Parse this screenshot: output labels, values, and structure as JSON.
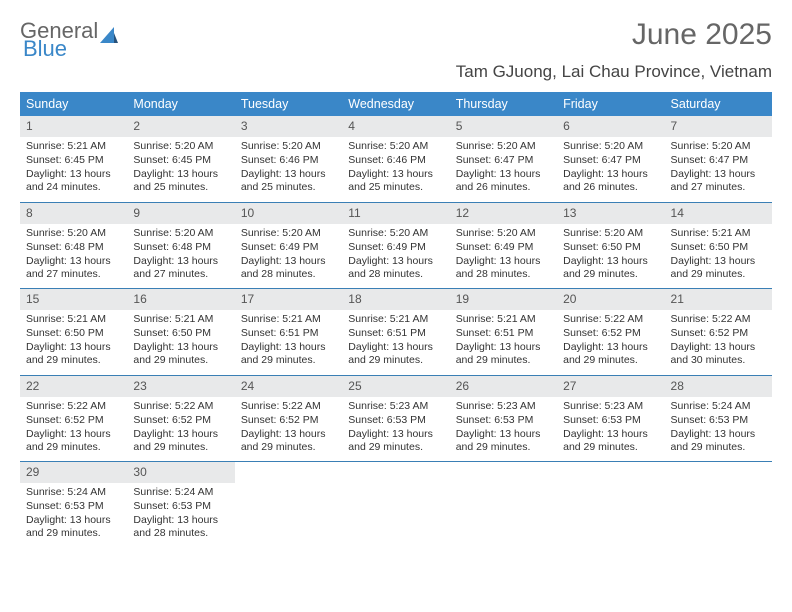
{
  "logo": {
    "text1": "General",
    "text2": "Blue"
  },
  "title": "June 2025",
  "location": "Tam GJuong, Lai Chau Province, Vietnam",
  "colors": {
    "header_bg": "#3a87c8",
    "daynum_bg": "#e8e9ea",
    "week_border": "#3a7fb5",
    "title_color": "#666666",
    "text_color": "#333333"
  },
  "dayNames": [
    "Sunday",
    "Monday",
    "Tuesday",
    "Wednesday",
    "Thursday",
    "Friday",
    "Saturday"
  ],
  "labels": {
    "sunrise": "Sunrise:",
    "sunset": "Sunset:",
    "daylight": "Daylight:"
  },
  "weeks": [
    [
      {
        "n": "1",
        "sr": "5:21 AM",
        "ss": "6:45 PM",
        "dl": "13 hours and 24 minutes."
      },
      {
        "n": "2",
        "sr": "5:20 AM",
        "ss": "6:45 PM",
        "dl": "13 hours and 25 minutes."
      },
      {
        "n": "3",
        "sr": "5:20 AM",
        "ss": "6:46 PM",
        "dl": "13 hours and 25 minutes."
      },
      {
        "n": "4",
        "sr": "5:20 AM",
        "ss": "6:46 PM",
        "dl": "13 hours and 25 minutes."
      },
      {
        "n": "5",
        "sr": "5:20 AM",
        "ss": "6:47 PM",
        "dl": "13 hours and 26 minutes."
      },
      {
        "n": "6",
        "sr": "5:20 AM",
        "ss": "6:47 PM",
        "dl": "13 hours and 26 minutes."
      },
      {
        "n": "7",
        "sr": "5:20 AM",
        "ss": "6:47 PM",
        "dl": "13 hours and 27 minutes."
      }
    ],
    [
      {
        "n": "8",
        "sr": "5:20 AM",
        "ss": "6:48 PM",
        "dl": "13 hours and 27 minutes."
      },
      {
        "n": "9",
        "sr": "5:20 AM",
        "ss": "6:48 PM",
        "dl": "13 hours and 27 minutes."
      },
      {
        "n": "10",
        "sr": "5:20 AM",
        "ss": "6:49 PM",
        "dl": "13 hours and 28 minutes."
      },
      {
        "n": "11",
        "sr": "5:20 AM",
        "ss": "6:49 PM",
        "dl": "13 hours and 28 minutes."
      },
      {
        "n": "12",
        "sr": "5:20 AM",
        "ss": "6:49 PM",
        "dl": "13 hours and 28 minutes."
      },
      {
        "n": "13",
        "sr": "5:20 AM",
        "ss": "6:50 PM",
        "dl": "13 hours and 29 minutes."
      },
      {
        "n": "14",
        "sr": "5:21 AM",
        "ss": "6:50 PM",
        "dl": "13 hours and 29 minutes."
      }
    ],
    [
      {
        "n": "15",
        "sr": "5:21 AM",
        "ss": "6:50 PM",
        "dl": "13 hours and 29 minutes."
      },
      {
        "n": "16",
        "sr": "5:21 AM",
        "ss": "6:50 PM",
        "dl": "13 hours and 29 minutes."
      },
      {
        "n": "17",
        "sr": "5:21 AM",
        "ss": "6:51 PM",
        "dl": "13 hours and 29 minutes."
      },
      {
        "n": "18",
        "sr": "5:21 AM",
        "ss": "6:51 PM",
        "dl": "13 hours and 29 minutes."
      },
      {
        "n": "19",
        "sr": "5:21 AM",
        "ss": "6:51 PM",
        "dl": "13 hours and 29 minutes."
      },
      {
        "n": "20",
        "sr": "5:22 AM",
        "ss": "6:52 PM",
        "dl": "13 hours and 29 minutes."
      },
      {
        "n": "21",
        "sr": "5:22 AM",
        "ss": "6:52 PM",
        "dl": "13 hours and 30 minutes."
      }
    ],
    [
      {
        "n": "22",
        "sr": "5:22 AM",
        "ss": "6:52 PM",
        "dl": "13 hours and 29 minutes."
      },
      {
        "n": "23",
        "sr": "5:22 AM",
        "ss": "6:52 PM",
        "dl": "13 hours and 29 minutes."
      },
      {
        "n": "24",
        "sr": "5:22 AM",
        "ss": "6:52 PM",
        "dl": "13 hours and 29 minutes."
      },
      {
        "n": "25",
        "sr": "5:23 AM",
        "ss": "6:53 PM",
        "dl": "13 hours and 29 minutes."
      },
      {
        "n": "26",
        "sr": "5:23 AM",
        "ss": "6:53 PM",
        "dl": "13 hours and 29 minutes."
      },
      {
        "n": "27",
        "sr": "5:23 AM",
        "ss": "6:53 PM",
        "dl": "13 hours and 29 minutes."
      },
      {
        "n": "28",
        "sr": "5:24 AM",
        "ss": "6:53 PM",
        "dl": "13 hours and 29 minutes."
      }
    ],
    [
      {
        "n": "29",
        "sr": "5:24 AM",
        "ss": "6:53 PM",
        "dl": "13 hours and 29 minutes."
      },
      {
        "n": "30",
        "sr": "5:24 AM",
        "ss": "6:53 PM",
        "dl": "13 hours and 28 minutes."
      },
      null,
      null,
      null,
      null,
      null
    ]
  ]
}
